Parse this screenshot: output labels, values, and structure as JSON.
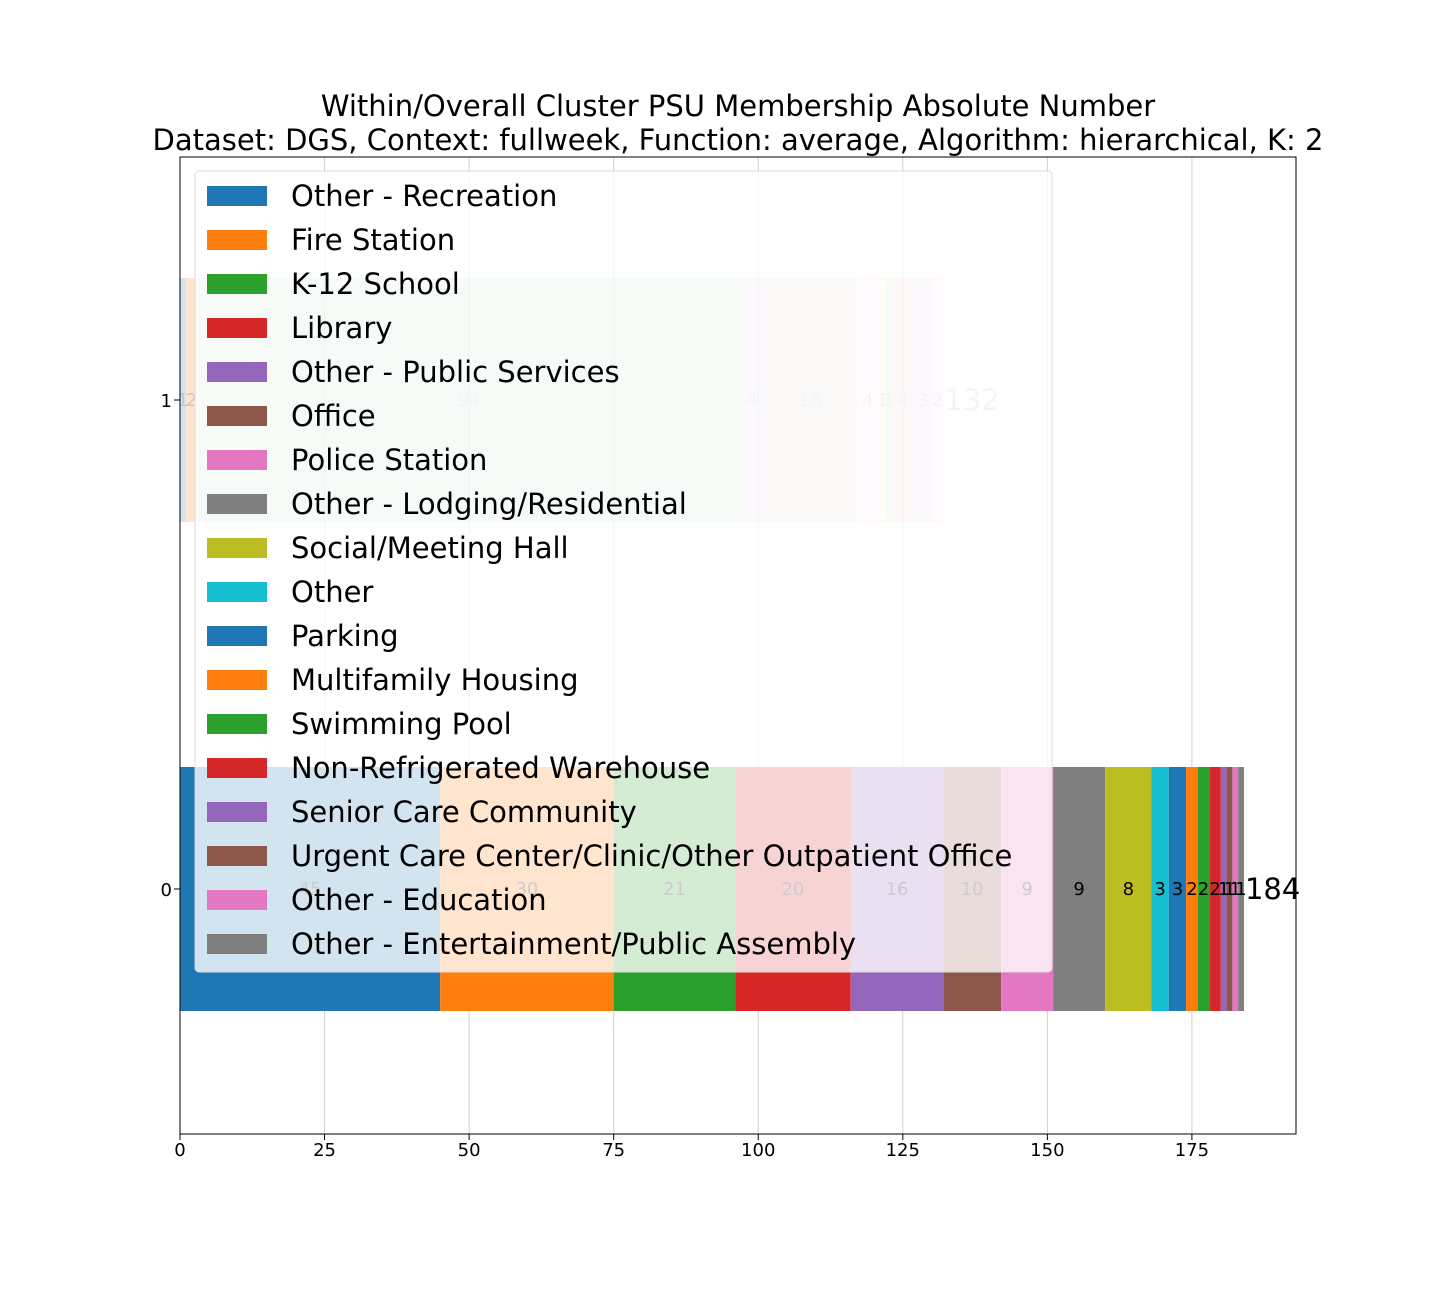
{
  "chart_data": {
    "type": "bar",
    "orientation": "horizontal-stacked",
    "title": "Within/Overall Cluster PSU Membership Absolute Number",
    "subtitle": "Dataset: DGS, Context: fullweek, Function: average, Algorithm: hierarchical, K: 2",
    "xlim": [
      0,
      193
    ],
    "x_ticks": [
      0,
      25,
      50,
      75,
      100,
      125,
      150,
      175
    ],
    "grid": true,
    "legend_position": "upper-left",
    "legend": [
      "Other - Recreation",
      "Fire Station",
      "K-12 School",
      "Library",
      "Other - Public Services",
      "Office",
      "Police Station",
      "Other - Lodging/Residential",
      "Social/Meeting Hall",
      "Other",
      "Parking",
      "Multifamily Housing",
      "Swimming Pool",
      "Non-Refrigerated Warehouse",
      "Senior Care Community",
      "Urgent Care Center/Clinic/Other Outpatient Office",
      "Other - Education",
      "Other - Entertainment/Public Assembly"
    ],
    "colors": [
      "#1f77b4",
      "#ff7f0e",
      "#2ca02c",
      "#d62728",
      "#9467bd",
      "#8c564b",
      "#e377c2",
      "#7f7f7f",
      "#bcbd22",
      "#17becf"
    ],
    "bars": [
      {
        "category": "1",
        "total": 132,
        "total_label": "132",
        "faded": true,
        "segments": [
          {
            "value": 1,
            "label": "1",
            "color": "#1f77b4"
          },
          {
            "value": 2,
            "label": "2",
            "color": "#ff7f0e"
          },
          {
            "value": 94,
            "label": "94",
            "color": "#2ca02c"
          },
          {
            "value": 4,
            "label": "4",
            "color": "#9467bd"
          },
          {
            "value": 16,
            "label": "16",
            "color": "#8c564b"
          },
          {
            "value": 4,
            "label": "4",
            "color": "#e377c2"
          },
          {
            "value": 1,
            "label": "1",
            "color": "#bcbd22"
          },
          {
            "value": 1,
            "label": "1",
            "color": "#2ca02c"
          },
          {
            "value": 4,
            "label": "4",
            "color": "#d62728"
          },
          {
            "value": 3,
            "label": "3",
            "color": "#9467bd"
          },
          {
            "value": 2,
            "label": "2",
            "color": "#e377c2"
          }
        ]
      },
      {
        "category": "0",
        "total": 184,
        "total_label": "184",
        "faded": false,
        "segments": [
          {
            "value": 45,
            "label": "45",
            "color": "#1f77b4"
          },
          {
            "value": 30,
            "label": "30",
            "color": "#ff7f0e"
          },
          {
            "value": 21,
            "label": "21",
            "color": "#2ca02c"
          },
          {
            "value": 20,
            "label": "20",
            "color": "#d62728"
          },
          {
            "value": 16,
            "label": "16",
            "color": "#9467bd"
          },
          {
            "value": 10,
            "label": "10",
            "color": "#8c564b"
          },
          {
            "value": 9,
            "label": "9",
            "color": "#e377c2"
          },
          {
            "value": 9,
            "label": "9",
            "color": "#7f7f7f"
          },
          {
            "value": 8,
            "label": "8",
            "color": "#bcbd22"
          },
          {
            "value": 3,
            "label": "3",
            "color": "#17becf"
          },
          {
            "value": 3,
            "label": "3",
            "color": "#1f77b4"
          },
          {
            "value": 2,
            "label": "2",
            "color": "#ff7f0e"
          },
          {
            "value": 2,
            "label": "2",
            "color": "#2ca02c"
          },
          {
            "value": 2,
            "label": "2",
            "color": "#d62728"
          },
          {
            "value": 1,
            "label": "1",
            "color": "#9467bd"
          },
          {
            "value": 1,
            "label": "1",
            "color": "#8c564b"
          },
          {
            "value": 1,
            "label": "1",
            "color": "#e377c2"
          },
          {
            "value": 1,
            "label": "1",
            "color": "#7f7f7f"
          }
        ]
      }
    ]
  }
}
